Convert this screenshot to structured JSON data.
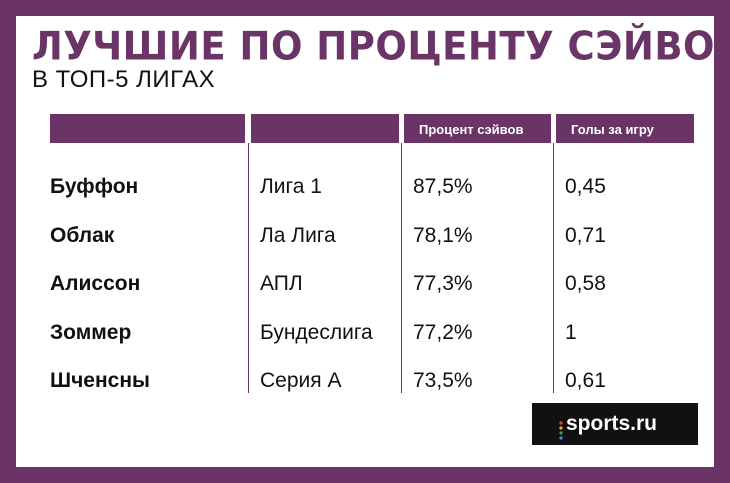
{
  "title": "ЛУЧШИЕ ПО ПРОЦЕНТУ СЭЙВОВ",
  "subtitle": "В ТОП-5 ЛИГАХ",
  "table": {
    "headers": [
      "",
      "",
      "Процент сэйвов",
      "Голы за игру"
    ],
    "rows": [
      {
        "player": "Буффон",
        "league": "Лига 1",
        "save_pct": "87,5%",
        "goals_per_game": "0,45"
      },
      {
        "player": "Облак",
        "league": "Ла Лига",
        "save_pct": "78,1%",
        "goals_per_game": "0,71"
      },
      {
        "player": "Алиссон",
        "league": "АПЛ",
        "save_pct": "77,3%",
        "goals_per_game": "0,58"
      },
      {
        "player": "Зоммер",
        "league": "Бундеслига",
        "save_pct": "77,2%",
        "goals_per_game": "1"
      },
      {
        "player": "Шченсны",
        "league": "Серия А",
        "save_pct": "73,5%",
        "goals_per_game": "0,61"
      }
    ]
  },
  "logo": {
    "text": "sports.ru"
  },
  "colors": {
    "accent": "#6a3466",
    "background": "#ffffff",
    "text": "#111111",
    "logo_bg": "#111111"
  }
}
